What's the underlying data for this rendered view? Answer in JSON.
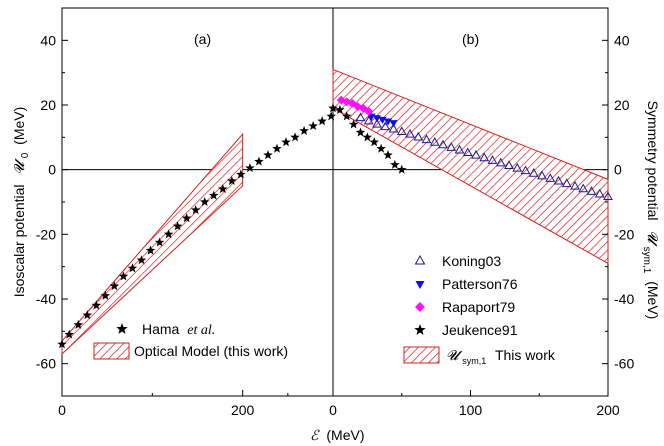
{
  "colors": {
    "band": "#d42020",
    "open_triangle": "#1a1a8c",
    "filled_triangle": "#1010e0",
    "diamond": "#ff10ff",
    "star": "#000000"
  },
  "chart_data": [
    {
      "type": "scatter",
      "panel_label": "(a)",
      "xlim": [
        0,
        300
      ],
      "ylim": [
        -70,
        50
      ],
      "x_ticks": [
        "0",
        "200",
        "0"
      ],
      "y_ticks": [
        "40",
        "20",
        "0",
        "-20",
        "-40",
        "-60"
      ],
      "ylabel_text": "Isoscalar potential",
      "ylabel_symbol": "𝓤",
      "ylabel_sub": "0",
      "ylabel_unit": "(MeV)",
      "series": [
        {
          "name": "Hama",
          "name_suffix": "et al.",
          "marker": "star",
          "x": [
            0,
            8,
            18,
            28,
            38,
            48,
            58,
            68,
            78,
            88,
            98,
            108,
            118,
            128,
            138,
            148,
            158,
            168,
            178,
            188,
            198,
            208,
            218,
            228,
            238,
            248,
            258,
            268,
            278,
            288,
            298
          ],
          "y": [
            -54,
            -51,
            -48,
            -45,
            -42,
            -39,
            -36,
            -33,
            -30.5,
            -28,
            -25,
            -22.5,
            -20,
            -17.5,
            -15,
            -12.5,
            -10,
            -8,
            -6,
            -3.5,
            -1.5,
            0.5,
            2.5,
            4.5,
            6.5,
            8.5,
            10,
            12,
            13.5,
            15,
            16.5
          ]
        },
        {
          "name": "Optical Model (this work)",
          "marker": "hatched-band",
          "band": {
            "x": [
              0,
              200
            ],
            "upper": [
              -53,
              11
            ],
            "lower": [
              -57,
              -5
            ]
          }
        }
      ]
    },
    {
      "type": "scatter",
      "panel_label": "(b)",
      "xlim": [
        0,
        200
      ],
      "ylim": [
        -70,
        50
      ],
      "x_ticks": [
        "100",
        "200"
      ],
      "y_ticks": [
        "40",
        "20",
        "0",
        "-20",
        "-40",
        "-60"
      ],
      "xlabel_symbol": "ℰ",
      "xlabel_unit": "(MeV)",
      "ylabel_text": "Symmetry potential",
      "ylabel_symbol": "𝓤",
      "ylabel_sub": "sym,1",
      "ylabel_unit": "(MeV)",
      "series": [
        {
          "name": "Koning03",
          "marker": "open-triangle",
          "x": [
            20,
            26,
            32,
            38,
            44,
            50,
            56,
            62,
            68,
            74,
            80,
            86,
            92,
            98,
            104,
            110,
            116,
            122,
            128,
            134,
            140,
            146,
            152,
            158,
            164,
            170,
            176,
            182,
            188,
            194,
            200
          ],
          "y": [
            16,
            15,
            14,
            13.2,
            12.5,
            11.7,
            10.9,
            10,
            9.2,
            8.4,
            7.6,
            6.8,
            6,
            5.2,
            4.4,
            3.6,
            2.8,
            2,
            1.2,
            0.4,
            -0.4,
            -1.2,
            -2,
            -2.8,
            -3.6,
            -4.4,
            -5.2,
            -6,
            -6.8,
            -7.6,
            -8.4
          ]
        },
        {
          "name": "Patterson76",
          "marker": "filled-down-triangle",
          "x": [
            28,
            32,
            36,
            40,
            44
          ],
          "y": [
            16.5,
            16,
            15.5,
            15,
            14.5
          ]
        },
        {
          "name": "Rapaport79",
          "marker": "diamond",
          "x": [
            6,
            10,
            14,
            18,
            22,
            26
          ],
          "y": [
            21.5,
            21,
            20.5,
            19.5,
            19,
            18
          ]
        },
        {
          "name": "Jeukence91",
          "marker": "star",
          "x": [
            0,
            5,
            10,
            15,
            20,
            25,
            30,
            35,
            40,
            45,
            50
          ],
          "y": [
            19,
            18.5,
            16.5,
            14,
            11.5,
            10,
            8.5,
            6.5,
            4.5,
            1.5,
            0
          ]
        },
        {
          "name_symbol": "𝓤",
          "name_sub": "sym,1",
          "name": "This work",
          "marker": "hatched-band",
          "band": {
            "x": [
              0,
              200
            ],
            "upper": [
              31,
              -3
            ],
            "lower": [
              19,
              -29
            ]
          }
        }
      ]
    }
  ]
}
